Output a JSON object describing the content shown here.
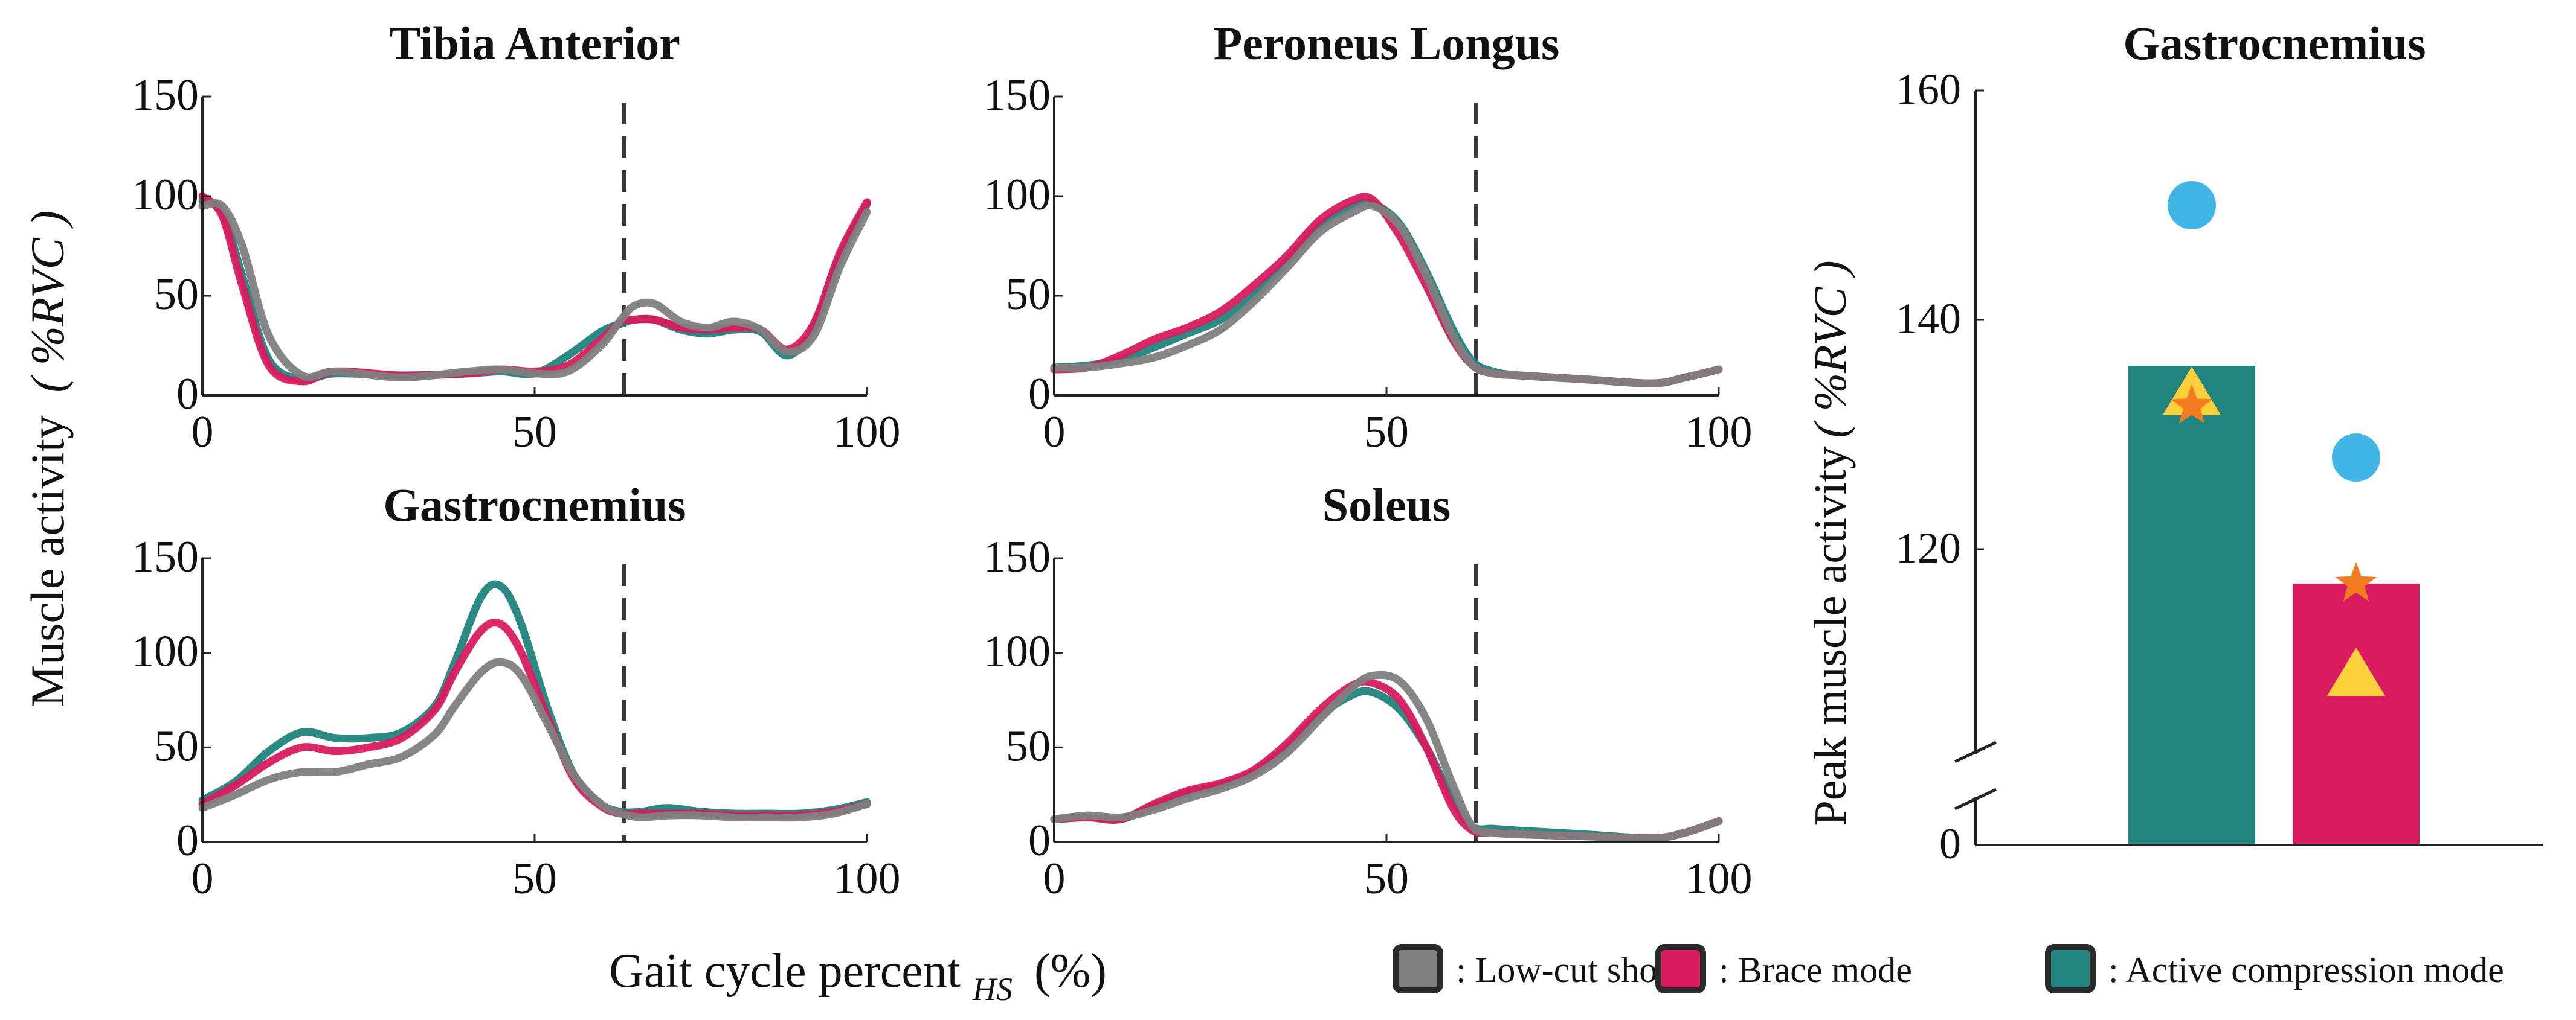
{
  "figure": {
    "shared_ylabel": "Muscle activity",
    "shared_ylabel_unit": "( %RVC )",
    "shared_xlabel": "Gait cycle percent",
    "shared_xlabel_sub": "HS",
    "shared_xlabel_unit": "(%)"
  },
  "legend": [
    {
      "key": "low",
      "label": ": Low-cut shoes",
      "color": "#7f7f7f"
    },
    {
      "key": "brace",
      "label": ": Brace mode",
      "color": "#d81b60"
    },
    {
      "key": "active",
      "label": ": Active compression mode",
      "color": "#21847e"
    }
  ],
  "colors": {
    "low": "#808080",
    "brace": "#d81b60",
    "active": "#21847e",
    "circle": "#41b6e6",
    "star": "#f47c20",
    "triangle": "#fcd03a"
  },
  "chart_data": [
    {
      "type": "line",
      "title": "Tibia Anterior",
      "xlim": [
        0,
        100
      ],
      "ylim": [
        0,
        150
      ],
      "xticks": [
        0,
        50,
        100
      ],
      "yticks": [
        0,
        50,
        100,
        150
      ],
      "vline": 63.5,
      "series": [
        {
          "key": "low",
          "name": "Low-cut shoes",
          "x": [
            0,
            3,
            6,
            10,
            15,
            20,
            30,
            40,
            45,
            50,
            55,
            60,
            63,
            65,
            68,
            72,
            76,
            80,
            84,
            88,
            92,
            96,
            100
          ],
          "y": [
            95,
            95,
            75,
            30,
            10,
            12,
            9,
            12,
            13,
            11,
            12,
            25,
            38,
            45,
            46,
            37,
            34,
            37,
            33,
            22,
            30,
            65,
            92
          ]
        },
        {
          "key": "brace",
          "name": "Brace mode",
          "x": [
            0,
            3,
            6,
            10,
            15,
            20,
            30,
            40,
            45,
            50,
            55,
            60,
            63,
            65,
            68,
            72,
            76,
            80,
            84,
            88,
            92,
            96,
            100
          ],
          "y": [
            100,
            90,
            55,
            15,
            7,
            12,
            10,
            11,
            13,
            12,
            15,
            28,
            37,
            38,
            38,
            34,
            33,
            34,
            33,
            23,
            36,
            72,
            97
          ]
        },
        {
          "key": "active",
          "name": "Active compression mode",
          "x": [
            0,
            3,
            6,
            10,
            15,
            20,
            30,
            40,
            45,
            50,
            55,
            60,
            63,
            65,
            68,
            72,
            76,
            80,
            84,
            88,
            92,
            96,
            100
          ],
          "y": [
            98,
            92,
            60,
            18,
            8,
            11,
            10,
            11,
            12,
            11,
            20,
            32,
            36,
            38,
            38,
            33,
            31,
            33,
            32,
            20,
            34,
            70,
            96
          ]
        }
      ]
    },
    {
      "type": "line",
      "title": "Peroneus Longus",
      "xlim": [
        0,
        100
      ],
      "ylim": [
        0,
        150
      ],
      "xticks": [
        0,
        50,
        100
      ],
      "yticks": [
        0,
        50,
        100,
        150
      ],
      "vline": 63.5,
      "series": [
        {
          "key": "low",
          "name": "Low-cut shoes",
          "x": [
            0,
            5,
            10,
            15,
            20,
            25,
            30,
            35,
            40,
            45,
            48,
            52,
            56,
            60,
            63,
            66,
            70,
            80,
            90,
            95,
            100
          ],
          "y": [
            14,
            14,
            16,
            19,
            25,
            33,
            47,
            64,
            82,
            92,
            95,
            85,
            60,
            30,
            15,
            11,
            10,
            8,
            6,
            9,
            13
          ]
        },
        {
          "key": "brace",
          "name": "Brace mode",
          "x": [
            0,
            5,
            10,
            15,
            20,
            25,
            30,
            35,
            40,
            45,
            48,
            52,
            56,
            60,
            63,
            66,
            70,
            80,
            90,
            95,
            100
          ],
          "y": [
            13,
            14,
            20,
            28,
            34,
            42,
            55,
            70,
            88,
            98,
            98,
            80,
            55,
            28,
            15,
            11,
            10,
            8,
            6,
            9,
            13
          ]
        },
        {
          "key": "active",
          "name": "Active compression mode",
          "x": [
            0,
            5,
            10,
            15,
            20,
            25,
            30,
            35,
            40,
            45,
            48,
            52,
            56,
            60,
            63,
            66,
            70,
            80,
            90,
            95,
            100
          ],
          "y": [
            14,
            15,
            18,
            24,
            31,
            38,
            50,
            67,
            85,
            95,
            96,
            86,
            62,
            33,
            17,
            12,
            10,
            8,
            6,
            9,
            13
          ]
        }
      ]
    },
    {
      "type": "line",
      "title": "Gastrocnemius",
      "xlim": [
        0,
        100
      ],
      "ylim": [
        0,
        150
      ],
      "xticks": [
        0,
        50,
        100
      ],
      "yticks": [
        0,
        50,
        100,
        150
      ],
      "vline": 63.5,
      "series": [
        {
          "key": "low",
          "name": "Low-cut shoes",
          "x": [
            0,
            5,
            10,
            15,
            20,
            25,
            30,
            35,
            38,
            42,
            45,
            48,
            52,
            56,
            60,
            63,
            66,
            70,
            75,
            80,
            85,
            90,
            95,
            100
          ],
          "y": [
            18,
            25,
            33,
            37,
            37,
            41,
            45,
            57,
            72,
            90,
            95,
            88,
            62,
            35,
            20,
            15,
            13,
            14,
            14,
            13,
            13,
            13,
            15,
            20
          ]
        },
        {
          "key": "brace",
          "name": "Brace mode",
          "x": [
            0,
            5,
            10,
            15,
            20,
            25,
            30,
            35,
            38,
            42,
            45,
            48,
            52,
            56,
            60,
            63,
            66,
            70,
            75,
            80,
            85,
            90,
            95,
            100
          ],
          "y": [
            20,
            30,
            42,
            50,
            48,
            50,
            55,
            70,
            90,
            112,
            115,
            100,
            65,
            33,
            19,
            15,
            15,
            15,
            15,
            14,
            14,
            14,
            16,
            20
          ]
        },
        {
          "key": "active",
          "name": "Active compression mode",
          "x": [
            0,
            5,
            10,
            15,
            20,
            25,
            30,
            35,
            38,
            42,
            45,
            48,
            52,
            56,
            60,
            63,
            66,
            70,
            75,
            80,
            85,
            90,
            95,
            100
          ],
          "y": [
            22,
            32,
            48,
            58,
            55,
            55,
            58,
            72,
            95,
            130,
            135,
            115,
            70,
            35,
            20,
            16,
            16,
            18,
            16,
            15,
            15,
            15,
            17,
            21
          ]
        }
      ]
    },
    {
      "type": "line",
      "title": "Soleus",
      "xlim": [
        0,
        100
      ],
      "ylim": [
        0,
        150
      ],
      "xticks": [
        0,
        50,
        100
      ],
      "yticks": [
        0,
        50,
        100,
        150
      ],
      "vline": 63.5,
      "series": [
        {
          "key": "low",
          "name": "Low-cut shoes",
          "x": [
            0,
            5,
            10,
            15,
            20,
            25,
            30,
            35,
            40,
            45,
            48,
            52,
            56,
            60,
            63,
            66,
            70,
            80,
            90,
            95,
            100
          ],
          "y": [
            12,
            14,
            13,
            17,
            23,
            28,
            35,
            47,
            65,
            82,
            88,
            85,
            65,
            30,
            8,
            5,
            4,
            3,
            2,
            5,
            11
          ]
        },
        {
          "key": "brace",
          "name": "Brace mode",
          "x": [
            0,
            5,
            10,
            15,
            20,
            25,
            30,
            35,
            40,
            45,
            48,
            52,
            56,
            60,
            63,
            66,
            70,
            80,
            90,
            95,
            100
          ],
          "y": [
            12,
            13,
            12,
            20,
            27,
            31,
            38,
            52,
            70,
            83,
            84,
            75,
            50,
            18,
            6,
            5,
            4,
            3,
            2,
            5,
            11
          ]
        },
        {
          "key": "active",
          "name": "Active compression mode",
          "x": [
            0,
            5,
            10,
            15,
            20,
            25,
            30,
            35,
            40,
            45,
            48,
            52,
            56,
            60,
            63,
            66,
            70,
            80,
            90,
            95,
            100
          ],
          "y": [
            12,
            13,
            12,
            19,
            26,
            30,
            37,
            50,
            67,
            78,
            79,
            70,
            50,
            22,
            8,
            7,
            6,
            4,
            2,
            5,
            11
          ]
        }
      ]
    },
    {
      "type": "bar",
      "title": "Gastrocnemius",
      "ylabel": "Peak muscle activity",
      "ylabel_unit": "( %RVC )",
      "ylim_display": [
        100,
        160
      ],
      "axis_break": true,
      "yticks": [
        0,
        120,
        140,
        160
      ],
      "bars": [
        {
          "key": "active",
          "name": "Active compression mode",
          "value": 136,
          "color": "#21847e"
        },
        {
          "key": "brace",
          "name": "Brace mode",
          "value": 117,
          "color": "#d81b60"
        }
      ],
      "markers": [
        {
          "bar": 0,
          "shape": "circle",
          "value": 150
        },
        {
          "bar": 0,
          "shape": "triangle",
          "value": 133.5
        },
        {
          "bar": 0,
          "shape": "star",
          "value": 132.5
        },
        {
          "bar": 1,
          "shape": "circle",
          "value": 128
        },
        {
          "bar": 1,
          "shape": "star",
          "value": 117
        },
        {
          "bar": 1,
          "shape": "triangle",
          "value": 109
        }
      ]
    }
  ]
}
